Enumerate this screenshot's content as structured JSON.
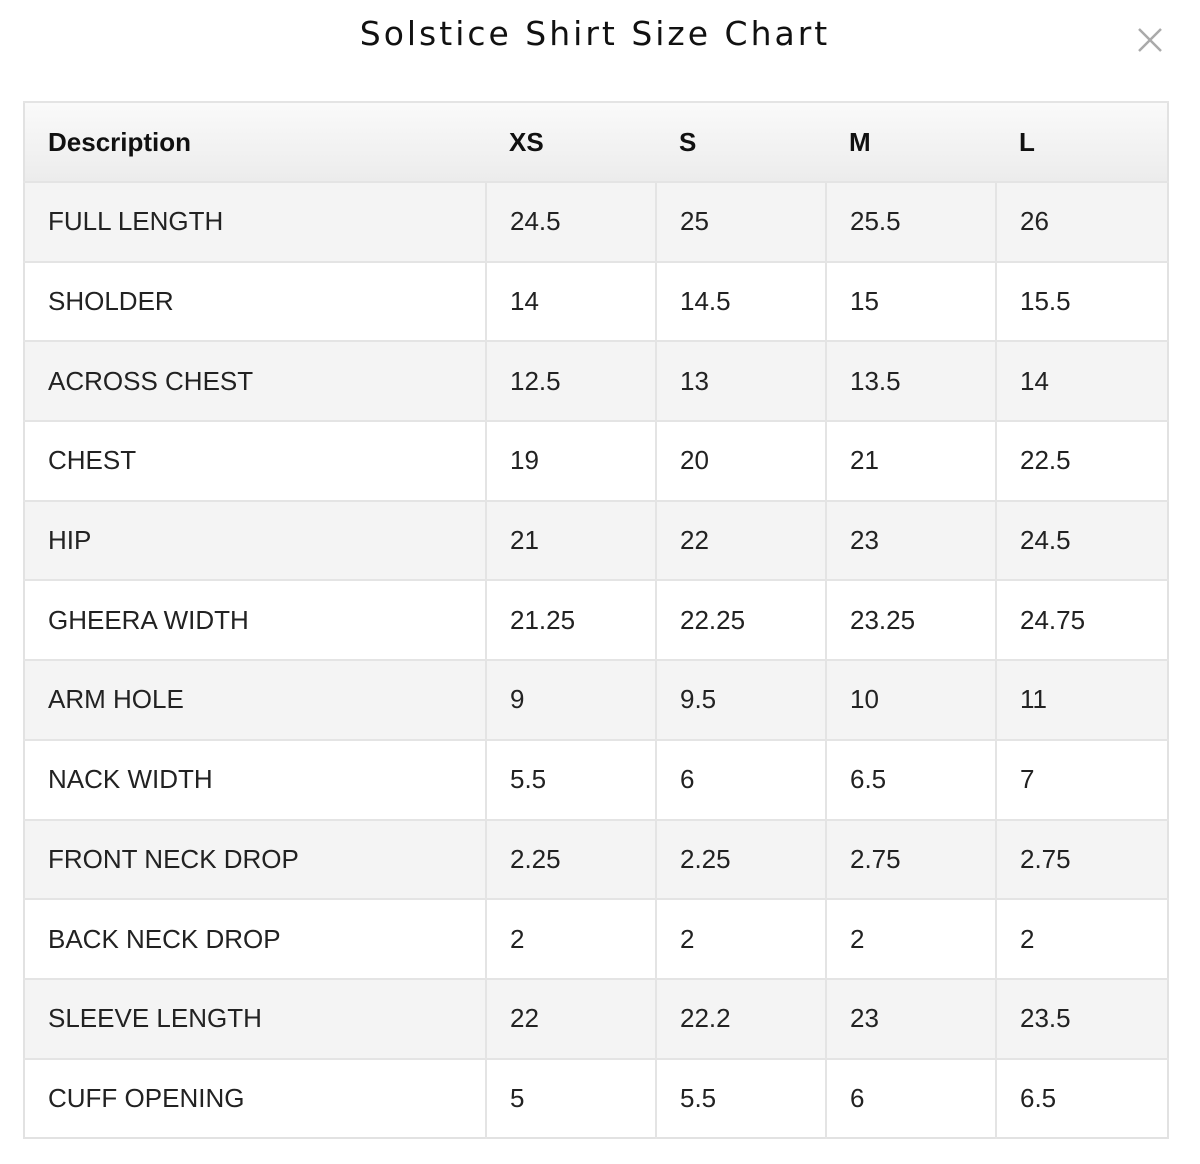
{
  "header": {
    "title": "Solstice Shirt Size Chart"
  },
  "table": {
    "columns": [
      "Description",
      "XS",
      "S",
      "M",
      "L"
    ],
    "rows": [
      [
        "FULL LENGTH",
        "24.5",
        "25",
        "25.5",
        "26"
      ],
      [
        "SHOLDER",
        "14",
        "14.5",
        "15",
        "15.5"
      ],
      [
        "ACROSS CHEST",
        "12.5",
        "13",
        "13.5",
        "14"
      ],
      [
        "CHEST",
        "19",
        "20",
        "21",
        "22.5"
      ],
      [
        "HIP",
        "21",
        "22",
        "23",
        "24.5"
      ],
      [
        "GHEERA WIDTH",
        "21.25",
        "22.25",
        "23.25",
        "24.75"
      ],
      [
        "ARM HOLE",
        "9",
        "9.5",
        "10",
        "11"
      ],
      [
        "NACK WIDTH",
        "5.5",
        "6",
        "6.5",
        "7"
      ],
      [
        "FRONT NECK DROP",
        "2.25",
        "2.25",
        "2.75",
        "2.75"
      ],
      [
        "BACK NECK DROP",
        "2",
        "2",
        "2",
        "2"
      ],
      [
        "SLEEVE LENGTH",
        "22",
        "22.2",
        "23",
        "23.5"
      ],
      [
        "CUFF OPENING",
        "5",
        "5.5",
        "6",
        "6.5"
      ]
    ]
  }
}
